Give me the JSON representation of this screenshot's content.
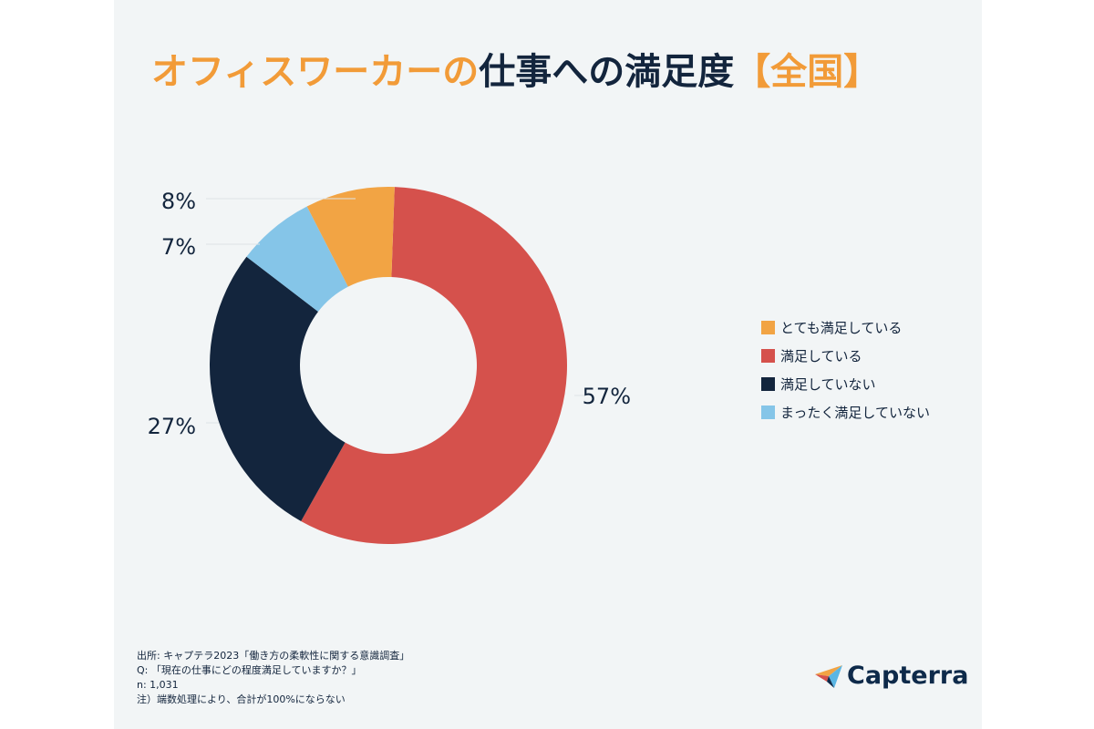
{
  "title": {
    "part_orange": "オフィスワーカーの",
    "part_navy": "仕事への満足度",
    "part_region": "【全国】"
  },
  "chart_data": {
    "type": "pie",
    "donut": true,
    "slices": [
      {
        "label": "満足している",
        "value": 57,
        "value_label": "57%",
        "color": "#d5514c"
      },
      {
        "label": "満足していない",
        "value": 27,
        "value_label": "27%",
        "color": "#13253d"
      },
      {
        "label": "まったく満足していない",
        "value": 7,
        "value_label": "7%",
        "color": "#85c5e8"
      },
      {
        "label": "とても満足している",
        "value": 8,
        "value_label": "8%",
        "color": "#f2a444"
      }
    ],
    "legend_order": [
      "とても満足している",
      "満足している",
      "満足していない",
      "まったく満足していない"
    ],
    "legend_position": "right"
  },
  "legend": {
    "items": [
      {
        "label": "とても満足している",
        "color": "#f2a444"
      },
      {
        "label": "満足している",
        "color": "#d5514c"
      },
      {
        "label": "満足していない",
        "color": "#13253d"
      },
      {
        "label": "まったく満足していない",
        "color": "#85c5e8"
      }
    ]
  },
  "footnotes": {
    "source": "出所: キャプテラ2023「働き方の柔軟性に関する意識調査」",
    "question": "Q: 「現在の仕事にどの程度満足していますか？」",
    "n": "n: 1,031",
    "note": "注）端数処理により、合計が100%にならない"
  },
  "logo": {
    "name": "Capterra",
    "icon": "capterra-arrow-icon"
  }
}
